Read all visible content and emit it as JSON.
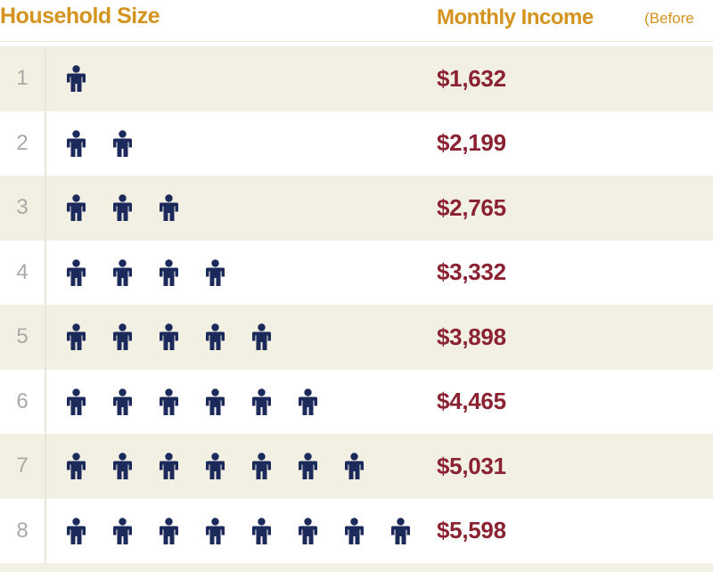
{
  "header": {
    "size_label": "Household Size",
    "income_label": "Monthly Income",
    "income_note": "(Before"
  },
  "rows": [
    {
      "size": "1",
      "people": 1,
      "income": "$1,632"
    },
    {
      "size": "2",
      "people": 2,
      "income": "$2,199"
    },
    {
      "size": "3",
      "people": 3,
      "income": "$2,765"
    },
    {
      "size": "4",
      "people": 4,
      "income": "$3,332"
    },
    {
      "size": "5",
      "people": 5,
      "income": "$3,898"
    },
    {
      "size": "6",
      "people": 6,
      "income": "$4,465"
    },
    {
      "size": "7",
      "people": 7,
      "income": "$5,031"
    },
    {
      "size": "8",
      "people": 8,
      "income": "$5,598"
    }
  ],
  "icon": "person-icon",
  "colors": {
    "header": "#d4931f",
    "income": "#8b2231",
    "person": "#1b2a5a",
    "row_shade": "#f2efe3"
  }
}
